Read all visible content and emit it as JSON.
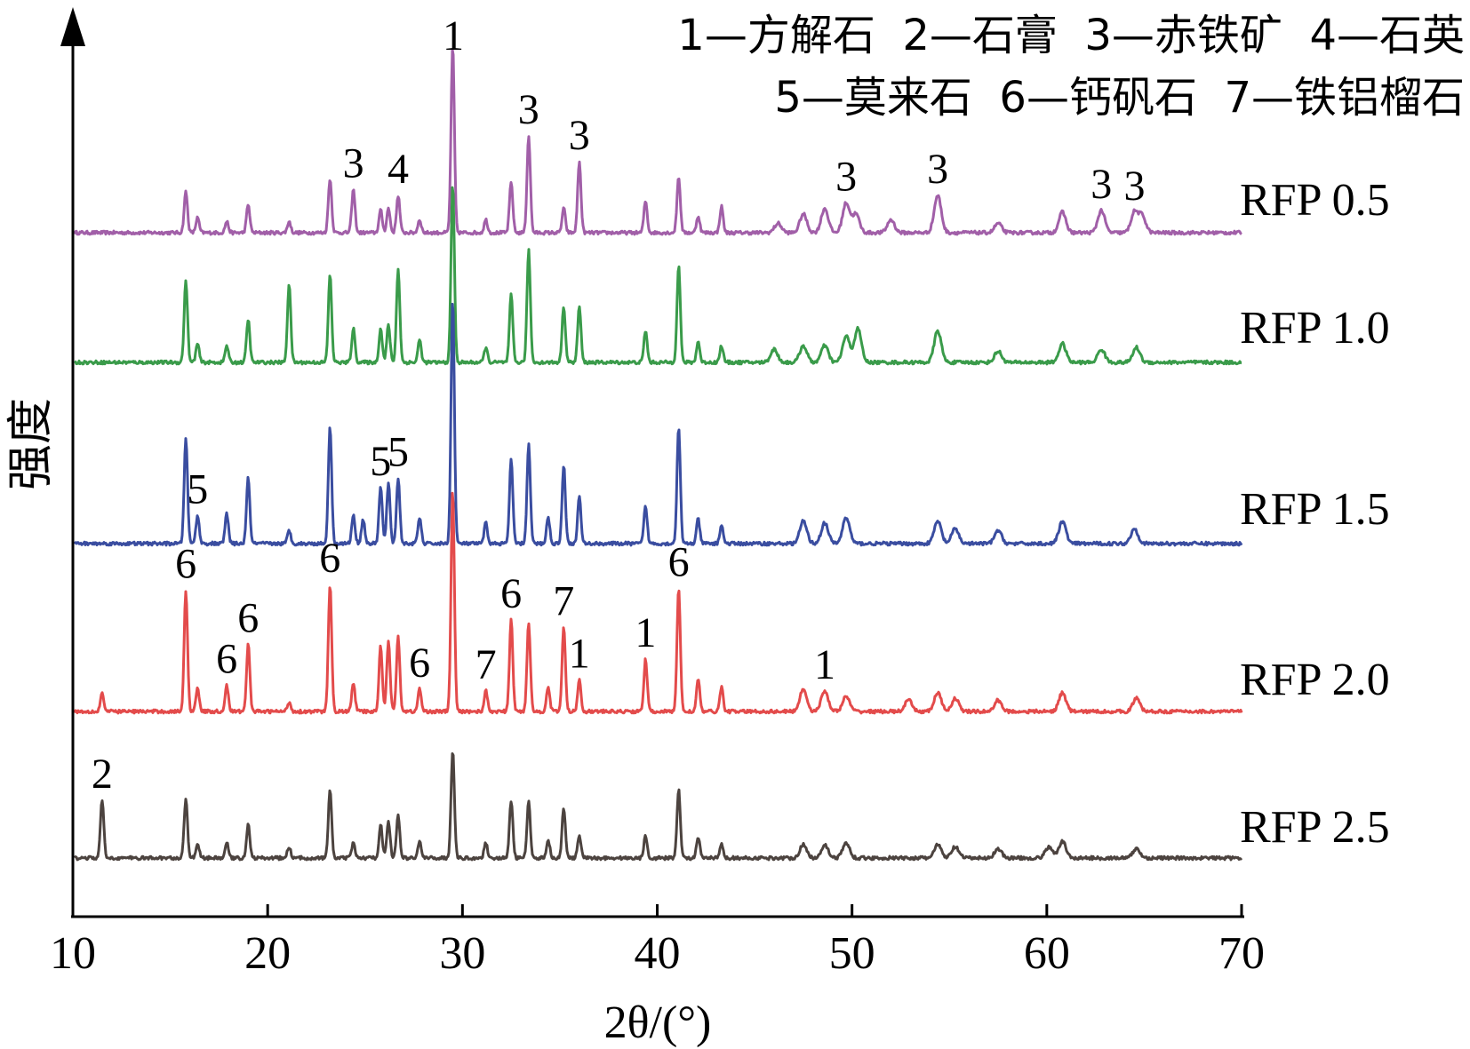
{
  "chart_data": {
    "type": "line",
    "xlabel": "2θ/(°)",
    "ylabel": "强度",
    "xlim": [
      10,
      70
    ],
    "xticks": [
      10,
      20,
      30,
      40,
      50,
      60,
      70
    ],
    "y_ticks_shown": false,
    "grid": false,
    "legend": {
      "placement": "top-right",
      "lines": [
        "1—方解石  2—石膏  3—赤铁矿  4—石英",
        "5—莫来石  6—钙矾石  7—铁铝榴石"
      ]
    },
    "top_marker": "1",
    "series": [
      {
        "name": "RFP 0.5",
        "color": "#a15fa8",
        "peaks": [
          [
            15.8,
            0.22
          ],
          [
            16.4,
            0.08
          ],
          [
            17.9,
            0.06
          ],
          [
            19,
            0.15
          ],
          [
            21.1,
            0.06
          ],
          [
            23.2,
            0.29
          ],
          [
            24.4,
            0.23
          ],
          [
            25.8,
            0.12
          ],
          [
            26.2,
            0.13
          ],
          [
            26.7,
            0.2
          ],
          [
            27.8,
            0.07
          ],
          [
            29.5,
            1.0
          ],
          [
            31.2,
            0.07
          ],
          [
            32.5,
            0.27
          ],
          [
            33.4,
            0.52
          ],
          [
            35.2,
            0.13
          ],
          [
            36.0,
            0.38
          ],
          [
            39.4,
            0.17
          ],
          [
            41.1,
            0.3
          ],
          [
            42.1,
            0.09
          ],
          [
            43.3,
            0.14
          ],
          [
            46.2,
            0.05
          ],
          [
            47.5,
            0.1
          ],
          [
            48.6,
            0.13
          ],
          [
            49.7,
            0.16
          ],
          [
            50.2,
            0.1
          ],
          [
            52,
            0.07
          ],
          [
            54.4,
            0.2
          ],
          [
            57.5,
            0.05
          ],
          [
            60.8,
            0.11
          ],
          [
            62.8,
            0.12
          ],
          [
            64.5,
            0.11
          ],
          [
            64.9,
            0.09
          ]
        ],
        "annotations": [
          {
            "x": 24.4,
            "label": "3"
          },
          {
            "x": 26.7,
            "label": "4"
          },
          {
            "x": 33.4,
            "label": "3"
          },
          {
            "x": 36.0,
            "label": "3"
          },
          {
            "x": 49.7,
            "label": "3"
          },
          {
            "x": 54.4,
            "label": "3"
          },
          {
            "x": 62.8,
            "label": "3"
          },
          {
            "x": 64.5,
            "label": "3"
          }
        ]
      },
      {
        "name": "RFP 1.0",
        "color": "#3a9b4a",
        "peaks": [
          [
            15.8,
            0.44
          ],
          [
            16.4,
            0.1
          ],
          [
            17.9,
            0.09
          ],
          [
            19,
            0.23
          ],
          [
            21.1,
            0.42
          ],
          [
            23.2,
            0.47
          ],
          [
            24.4,
            0.18
          ],
          [
            25.8,
            0.18
          ],
          [
            26.2,
            0.2
          ],
          [
            26.7,
            0.5
          ],
          [
            27.8,
            0.12
          ],
          [
            29.5,
            0.96
          ],
          [
            31.2,
            0.08
          ],
          [
            32.5,
            0.36
          ],
          [
            33.4,
            0.6
          ],
          [
            35.2,
            0.3
          ],
          [
            36.0,
            0.3
          ],
          [
            39.4,
            0.17
          ],
          [
            41.1,
            0.52
          ],
          [
            42.1,
            0.11
          ],
          [
            43.3,
            0.09
          ],
          [
            46.0,
            0.07
          ],
          [
            47.5,
            0.09
          ],
          [
            48.6,
            0.09
          ],
          [
            49.7,
            0.14
          ],
          [
            50.3,
            0.18
          ],
          [
            54.4,
            0.17
          ],
          [
            57.5,
            0.06
          ],
          [
            60.8,
            0.1
          ],
          [
            62.8,
            0.07
          ],
          [
            64.6,
            0.08
          ]
        ],
        "annotations": []
      },
      {
        "name": "RFP 1.5",
        "color": "#3a4da0",
        "peaks": [
          [
            15.8,
            0.57
          ],
          [
            16.4,
            0.15
          ],
          [
            17.9,
            0.16
          ],
          [
            19,
            0.35
          ],
          [
            21.1,
            0.07
          ],
          [
            23.2,
            0.63
          ],
          [
            24.4,
            0.15
          ],
          [
            24.9,
            0.13
          ],
          [
            25.8,
            0.3
          ],
          [
            26.2,
            0.32
          ],
          [
            26.7,
            0.35
          ],
          [
            27.8,
            0.14
          ],
          [
            29.5,
            1.31
          ],
          [
            31.2,
            0.11
          ],
          [
            32.5,
            0.45
          ],
          [
            33.4,
            0.53
          ],
          [
            34.4,
            0.14
          ],
          [
            35.2,
            0.42
          ],
          [
            36.0,
            0.25
          ],
          [
            39.4,
            0.2
          ],
          [
            41.1,
            0.62
          ],
          [
            42.1,
            0.13
          ],
          [
            43.3,
            0.1
          ],
          [
            47.5,
            0.12
          ],
          [
            48.6,
            0.11
          ],
          [
            49.7,
            0.14
          ],
          [
            54.4,
            0.12
          ],
          [
            55.3,
            0.08
          ],
          [
            57.5,
            0.07
          ],
          [
            60.8,
            0.12
          ],
          [
            64.5,
            0.08
          ]
        ],
        "annotations": [
          {
            "x": 16.4,
            "label": "5"
          },
          {
            "x": 25.8,
            "label": "5"
          },
          {
            "x": 26.7,
            "label": "5"
          }
        ]
      },
      {
        "name": "RFP 2.0",
        "color": "#e34b4b",
        "peaks": [
          [
            11.5,
            0.1
          ],
          [
            15.8,
            0.65
          ],
          [
            16.4,
            0.13
          ],
          [
            17.9,
            0.14
          ],
          [
            19,
            0.36
          ],
          [
            21.1,
            0.05
          ],
          [
            23.2,
            0.68
          ],
          [
            24.4,
            0.15
          ],
          [
            25.8,
            0.35
          ],
          [
            26.2,
            0.38
          ],
          [
            26.7,
            0.4
          ],
          [
            27.8,
            0.12
          ],
          [
            29.5,
            1.19
          ],
          [
            31.2,
            0.11
          ],
          [
            32.5,
            0.49
          ],
          [
            33.4,
            0.48
          ],
          [
            34.4,
            0.13
          ],
          [
            35.2,
            0.45
          ],
          [
            36.0,
            0.17
          ],
          [
            39.4,
            0.28
          ],
          [
            41.1,
            0.66
          ],
          [
            42.1,
            0.17
          ],
          [
            43.3,
            0.13
          ],
          [
            47.5,
            0.12
          ],
          [
            48.6,
            0.11
          ],
          [
            49.7,
            0.08
          ],
          [
            52.9,
            0.06
          ],
          [
            54.4,
            0.1
          ],
          [
            55.3,
            0.07
          ],
          [
            57.5,
            0.06
          ],
          [
            60.8,
            0.1
          ],
          [
            64.6,
            0.07
          ]
        ],
        "annotations": [
          {
            "x": 15.8,
            "label": "6"
          },
          {
            "x": 17.9,
            "label": "6"
          },
          {
            "x": 19.0,
            "label": "6"
          },
          {
            "x": 23.2,
            "label": "6"
          },
          {
            "x": 27.8,
            "label": "6"
          },
          {
            "x": 31.2,
            "label": "7"
          },
          {
            "x": 32.5,
            "label": "6"
          },
          {
            "x": 35.2,
            "label": "7"
          },
          {
            "x": 36.0,
            "label": "1"
          },
          {
            "x": 39.4,
            "label": "1"
          },
          {
            "x": 41.1,
            "label": "6"
          },
          {
            "x": 48.6,
            "label": "1"
          }
        ]
      },
      {
        "name": "RFP 2.5",
        "color": "#4c433f",
        "peaks": [
          [
            11.5,
            0.31
          ],
          [
            15.8,
            0.32
          ],
          [
            16.4,
            0.08
          ],
          [
            17.9,
            0.08
          ],
          [
            19,
            0.18
          ],
          [
            21.1,
            0.06
          ],
          [
            23.2,
            0.36
          ],
          [
            24.4,
            0.08
          ],
          [
            25.8,
            0.18
          ],
          [
            26.2,
            0.2
          ],
          [
            26.7,
            0.23
          ],
          [
            27.8,
            0.09
          ],
          [
            29.5,
            0.58
          ],
          [
            31.2,
            0.08
          ],
          [
            32.5,
            0.31
          ],
          [
            33.4,
            0.3
          ],
          [
            34.4,
            0.1
          ],
          [
            35.2,
            0.27
          ],
          [
            36.0,
            0.12
          ],
          [
            39.4,
            0.12
          ],
          [
            41.1,
            0.37
          ],
          [
            42.1,
            0.11
          ],
          [
            43.3,
            0.07
          ],
          [
            47.5,
            0.07
          ],
          [
            48.6,
            0.07
          ],
          [
            49.7,
            0.08
          ],
          [
            54.4,
            0.07
          ],
          [
            55.3,
            0.06
          ],
          [
            57.5,
            0.05
          ],
          [
            60.1,
            0.06
          ],
          [
            60.8,
            0.09
          ],
          [
            64.6,
            0.05
          ]
        ],
        "annotations": [
          {
            "x": 11.5,
            "label": "2"
          }
        ]
      }
    ]
  }
}
